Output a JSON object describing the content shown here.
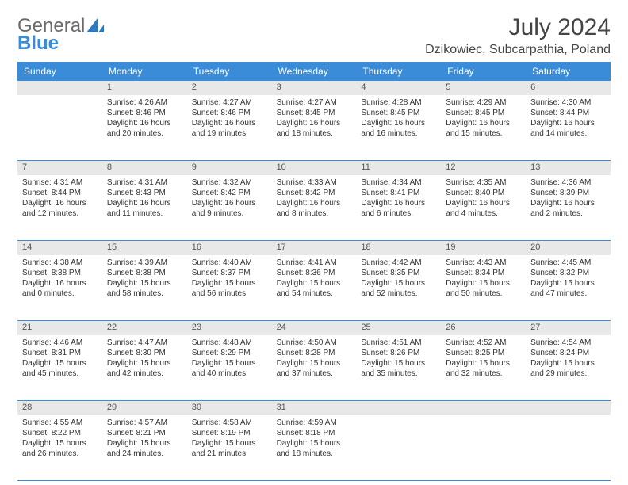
{
  "logo": {
    "general": "General",
    "blue": "Blue"
  },
  "title": "July 2024",
  "location": "Dzikowiec, Subcarpathia, Poland",
  "colors": {
    "accent": "#3a8bd8",
    "headerbg": "#3a8bd8",
    "rowbg": "#e8e8e8"
  },
  "dayHeaders": [
    "Sunday",
    "Monday",
    "Tuesday",
    "Wednesday",
    "Thursday",
    "Friday",
    "Saturday"
  ],
  "weeks": [
    [
      {
        "n": "",
        "lines": []
      },
      {
        "n": "1",
        "lines": [
          "Sunrise: 4:26 AM",
          "Sunset: 8:46 PM",
          "Daylight: 16 hours and 20 minutes."
        ]
      },
      {
        "n": "2",
        "lines": [
          "Sunrise: 4:27 AM",
          "Sunset: 8:46 PM",
          "Daylight: 16 hours and 19 minutes."
        ]
      },
      {
        "n": "3",
        "lines": [
          "Sunrise: 4:27 AM",
          "Sunset: 8:45 PM",
          "Daylight: 16 hours and 18 minutes."
        ]
      },
      {
        "n": "4",
        "lines": [
          "Sunrise: 4:28 AM",
          "Sunset: 8:45 PM",
          "Daylight: 16 hours and 16 minutes."
        ]
      },
      {
        "n": "5",
        "lines": [
          "Sunrise: 4:29 AM",
          "Sunset: 8:45 PM",
          "Daylight: 16 hours and 15 minutes."
        ]
      },
      {
        "n": "6",
        "lines": [
          "Sunrise: 4:30 AM",
          "Sunset: 8:44 PM",
          "Daylight: 16 hours and 14 minutes."
        ]
      }
    ],
    [
      {
        "n": "7",
        "lines": [
          "Sunrise: 4:31 AM",
          "Sunset: 8:44 PM",
          "Daylight: 16 hours and 12 minutes."
        ]
      },
      {
        "n": "8",
        "lines": [
          "Sunrise: 4:31 AM",
          "Sunset: 8:43 PM",
          "Daylight: 16 hours and 11 minutes."
        ]
      },
      {
        "n": "9",
        "lines": [
          "Sunrise: 4:32 AM",
          "Sunset: 8:42 PM",
          "Daylight: 16 hours and 9 minutes."
        ]
      },
      {
        "n": "10",
        "lines": [
          "Sunrise: 4:33 AM",
          "Sunset: 8:42 PM",
          "Daylight: 16 hours and 8 minutes."
        ]
      },
      {
        "n": "11",
        "lines": [
          "Sunrise: 4:34 AM",
          "Sunset: 8:41 PM",
          "Daylight: 16 hours and 6 minutes."
        ]
      },
      {
        "n": "12",
        "lines": [
          "Sunrise: 4:35 AM",
          "Sunset: 8:40 PM",
          "Daylight: 16 hours and 4 minutes."
        ]
      },
      {
        "n": "13",
        "lines": [
          "Sunrise: 4:36 AM",
          "Sunset: 8:39 PM",
          "Daylight: 16 hours and 2 minutes."
        ]
      }
    ],
    [
      {
        "n": "14",
        "lines": [
          "Sunrise: 4:38 AM",
          "Sunset: 8:38 PM",
          "Daylight: 16 hours and 0 minutes."
        ]
      },
      {
        "n": "15",
        "lines": [
          "Sunrise: 4:39 AM",
          "Sunset: 8:38 PM",
          "Daylight: 15 hours and 58 minutes."
        ]
      },
      {
        "n": "16",
        "lines": [
          "Sunrise: 4:40 AM",
          "Sunset: 8:37 PM",
          "Daylight: 15 hours and 56 minutes."
        ]
      },
      {
        "n": "17",
        "lines": [
          "Sunrise: 4:41 AM",
          "Sunset: 8:36 PM",
          "Daylight: 15 hours and 54 minutes."
        ]
      },
      {
        "n": "18",
        "lines": [
          "Sunrise: 4:42 AM",
          "Sunset: 8:35 PM",
          "Daylight: 15 hours and 52 minutes."
        ]
      },
      {
        "n": "19",
        "lines": [
          "Sunrise: 4:43 AM",
          "Sunset: 8:34 PM",
          "Daylight: 15 hours and 50 minutes."
        ]
      },
      {
        "n": "20",
        "lines": [
          "Sunrise: 4:45 AM",
          "Sunset: 8:32 PM",
          "Daylight: 15 hours and 47 minutes."
        ]
      }
    ],
    [
      {
        "n": "21",
        "lines": [
          "Sunrise: 4:46 AM",
          "Sunset: 8:31 PM",
          "Daylight: 15 hours and 45 minutes."
        ]
      },
      {
        "n": "22",
        "lines": [
          "Sunrise: 4:47 AM",
          "Sunset: 8:30 PM",
          "Daylight: 15 hours and 42 minutes."
        ]
      },
      {
        "n": "23",
        "lines": [
          "Sunrise: 4:48 AM",
          "Sunset: 8:29 PM",
          "Daylight: 15 hours and 40 minutes."
        ]
      },
      {
        "n": "24",
        "lines": [
          "Sunrise: 4:50 AM",
          "Sunset: 8:28 PM",
          "Daylight: 15 hours and 37 minutes."
        ]
      },
      {
        "n": "25",
        "lines": [
          "Sunrise: 4:51 AM",
          "Sunset: 8:26 PM",
          "Daylight: 15 hours and 35 minutes."
        ]
      },
      {
        "n": "26",
        "lines": [
          "Sunrise: 4:52 AM",
          "Sunset: 8:25 PM",
          "Daylight: 15 hours and 32 minutes."
        ]
      },
      {
        "n": "27",
        "lines": [
          "Sunrise: 4:54 AM",
          "Sunset: 8:24 PM",
          "Daylight: 15 hours and 29 minutes."
        ]
      }
    ],
    [
      {
        "n": "28",
        "lines": [
          "Sunrise: 4:55 AM",
          "Sunset: 8:22 PM",
          "Daylight: 15 hours and 26 minutes."
        ]
      },
      {
        "n": "29",
        "lines": [
          "Sunrise: 4:57 AM",
          "Sunset: 8:21 PM",
          "Daylight: 15 hours and 24 minutes."
        ]
      },
      {
        "n": "30",
        "lines": [
          "Sunrise: 4:58 AM",
          "Sunset: 8:19 PM",
          "Daylight: 15 hours and 21 minutes."
        ]
      },
      {
        "n": "31",
        "lines": [
          "Sunrise: 4:59 AM",
          "Sunset: 8:18 PM",
          "Daylight: 15 hours and 18 minutes."
        ]
      },
      {
        "n": "",
        "lines": []
      },
      {
        "n": "",
        "lines": []
      },
      {
        "n": "",
        "lines": []
      }
    ]
  ]
}
